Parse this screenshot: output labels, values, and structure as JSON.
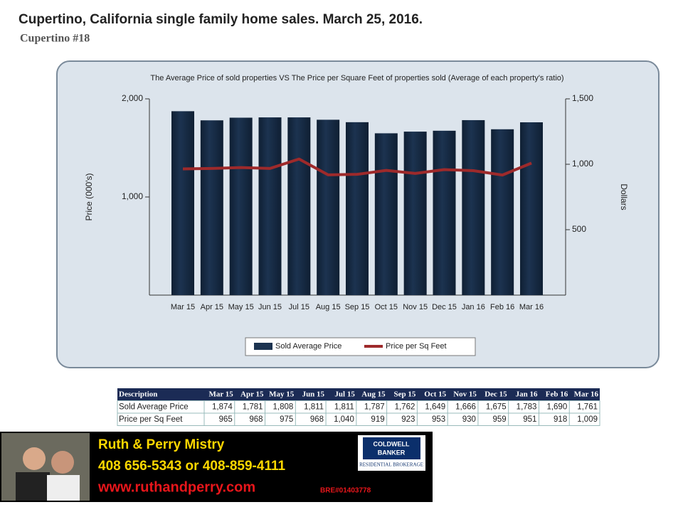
{
  "slide": {
    "title": "Cupertino, California single family home sales.  March 25,  2016.",
    "subtitle": "Cupertino #18"
  },
  "chart_data": {
    "type": "bar_line",
    "title": "The Average Price of sold properties VS The Price per Square Feet of properties sold (Average of each property's ratio)",
    "y_label": "Price (000's)",
    "y2_label": "Dollars",
    "categories": [
      "Mar 15",
      "Apr 15",
      "May 15",
      "Jun 15",
      "Jul 15",
      "Aug 15",
      "Sep 15",
      "Oct 15",
      "Nov 15",
      "Dec 15",
      "Jan 16",
      "Feb 16",
      "Mar 16"
    ],
    "series": [
      {
        "name": "Sold Average Price",
        "color": "#1c3350",
        "values": [
          1874,
          1781,
          1808,
          1811,
          1811,
          1787,
          1762,
          1649,
          1666,
          1675,
          1783,
          1690,
          1761
        ],
        "value_labels": [
          "1,874",
          "1,781",
          "1,808",
          "1,811",
          "1,811",
          "1,787",
          "1,762",
          "1,649",
          "1,666",
          "1,675",
          "1,783",
          "1,690",
          "1,761"
        ]
      },
      {
        "name": "Price per Sq Feet",
        "color": "#9e2a2b",
        "axis": "y2",
        "values": [
          965,
          968,
          975,
          968,
          1040,
          919,
          923,
          953,
          930,
          959,
          951,
          918,
          1009
        ],
        "value_labels": [
          "965",
          "968",
          "975",
          "968",
          "1,040",
          "919",
          "923",
          "953",
          "930",
          "959",
          "951",
          "918",
          "1,009"
        ]
      }
    ],
    "ylim": [
      0,
      2000
    ],
    "yticks": [
      {
        "value": 1000,
        "label": "1,000"
      },
      {
        "value": 2000,
        "label": "2,000"
      }
    ],
    "y2lim": [
      0,
      1500
    ],
    "y2ticks": [
      {
        "value": 500,
        "label": "500"
      },
      {
        "value": 1000,
        "label": "1,000"
      },
      {
        "value": 1500,
        "label": "1,500"
      }
    ],
    "legend": "bottom"
  },
  "table": {
    "header": "Description"
  },
  "footer": {
    "name": "Ruth & Perry Mistry",
    "phone": "408 656-5343  or 408-859-4111",
    "website": "www.ruthandperry.com",
    "license": "BRE#01403778",
    "logo_top": "COLDWELL",
    "logo_mid": "BANKER",
    "logo_bottom": "RESIDENTIAL BROKERAGE"
  }
}
